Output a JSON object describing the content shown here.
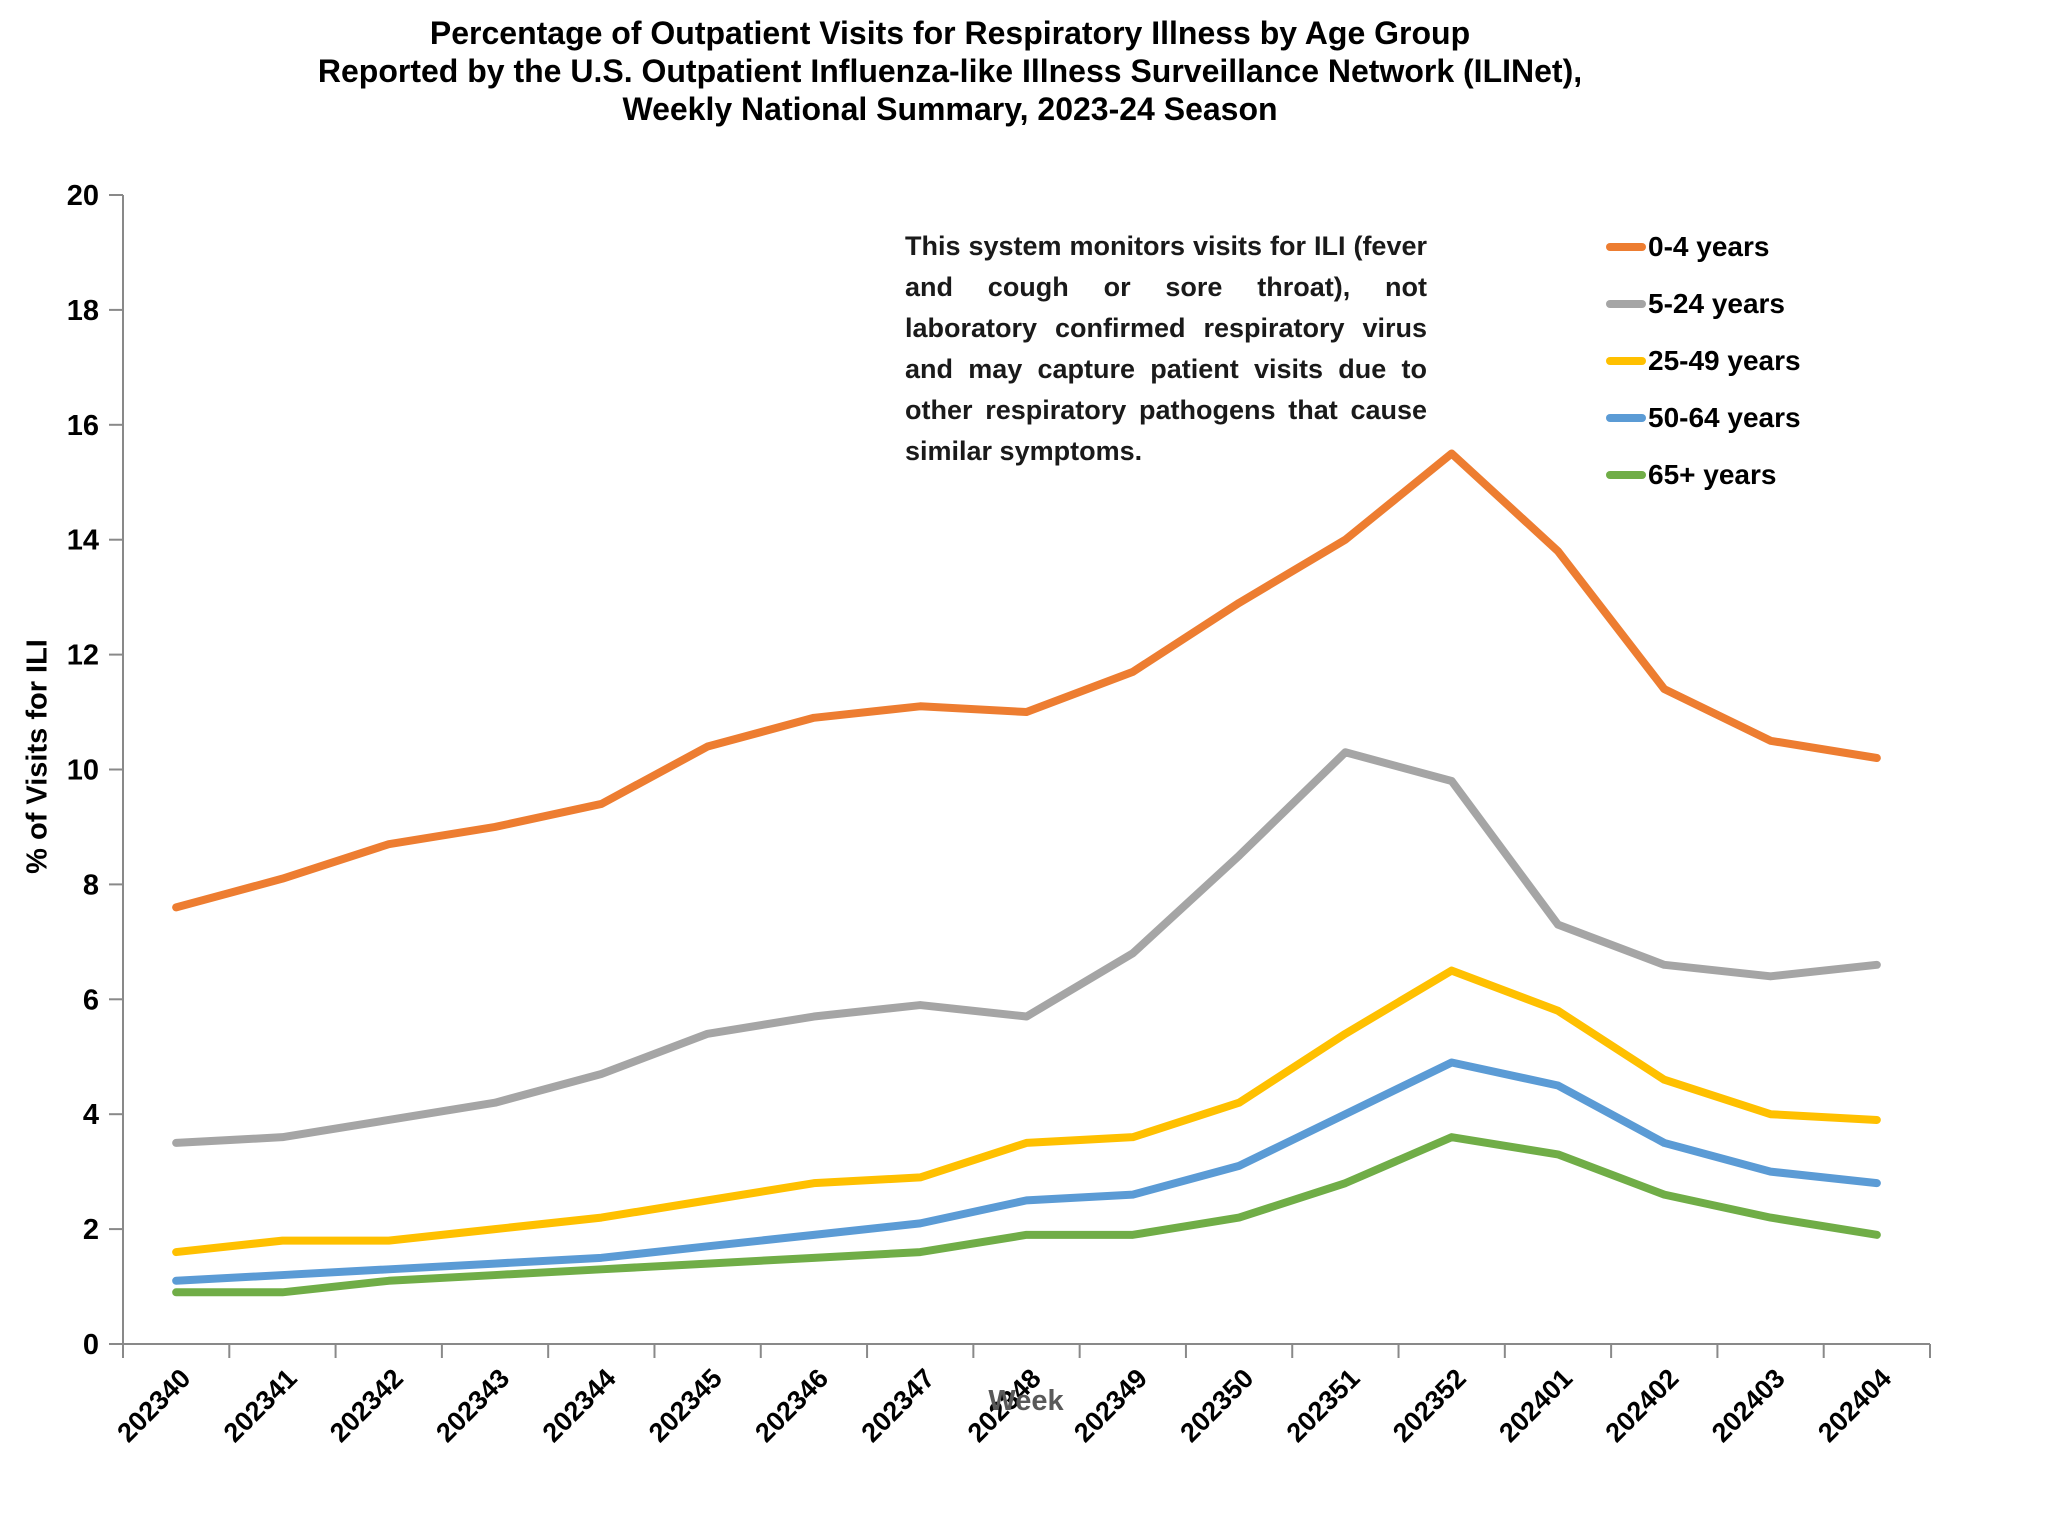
{
  "title": {
    "line1": "Percentage of Outpatient Visits for Respiratory Illness by Age Group",
    "line2": "Reported by the U.S. Outpatient Influenza-like Illness Surveillance Network (ILINet),",
    "line3": "Weekly National Summary, 2023-24 Season"
  },
  "annotation": "This system monitors visits for ILI (fever and cough or sore throat), not laboratory confirmed respiratory virus and may capture patient visits due to other respiratory pathogens that cause similar symptoms.",
  "chart_data": {
    "type": "line",
    "title": "Percentage of Outpatient Visits for Respiratory Illness by Age Group, ILINet, Weekly National Summary, 2023-24 Season",
    "xlabel": "Week",
    "ylabel": "% of Visits for ILI",
    "ylim": [
      0,
      20
    ],
    "ytick_step": 2,
    "grid": false,
    "legend_position": "right",
    "categories": [
      "202340",
      "202341",
      "202342",
      "202343",
      "202344",
      "202345",
      "202346",
      "202347",
      "202348",
      "202349",
      "202350",
      "202351",
      "202352",
      "202401",
      "202402",
      "202403",
      "202404"
    ],
    "series": [
      {
        "name": "0-4 years",
        "color": "#ED7D31",
        "values": [
          7.6,
          8.1,
          8.7,
          9.0,
          9.4,
          10.4,
          10.9,
          11.1,
          11.0,
          11.7,
          12.9,
          14.0,
          15.5,
          13.8,
          11.4,
          10.5,
          10.2
        ]
      },
      {
        "name": "5-24 years",
        "color": "#A5A5A5",
        "values": [
          3.5,
          3.6,
          3.9,
          4.2,
          4.7,
          5.4,
          5.7,
          5.9,
          5.7,
          6.8,
          8.5,
          10.3,
          9.8,
          7.3,
          6.6,
          6.4,
          6.6
        ]
      },
      {
        "name": "25-49 years",
        "color": "#FFC000",
        "values": [
          1.6,
          1.8,
          1.8,
          2.0,
          2.2,
          2.5,
          2.8,
          2.9,
          3.5,
          3.6,
          4.2,
          5.4,
          6.5,
          5.8,
          4.6,
          4.0,
          3.9
        ]
      },
      {
        "name": "50-64 years",
        "color": "#5B9BD5",
        "values": [
          1.1,
          1.2,
          1.3,
          1.4,
          1.5,
          1.7,
          1.9,
          2.1,
          2.5,
          2.6,
          3.1,
          4.0,
          4.9,
          4.5,
          3.5,
          3.0,
          2.8
        ]
      },
      {
        "name": "65+ years",
        "color": "#70AD47",
        "values": [
          0.9,
          0.9,
          1.1,
          1.2,
          1.3,
          1.4,
          1.5,
          1.6,
          1.9,
          1.9,
          2.2,
          2.8,
          3.6,
          3.3,
          2.6,
          2.2,
          1.9
        ]
      }
    ]
  }
}
